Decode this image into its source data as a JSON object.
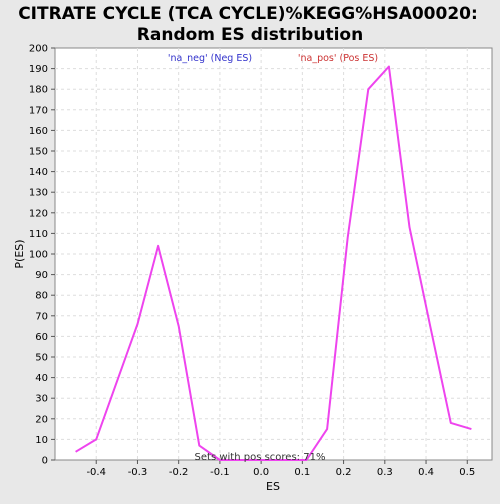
{
  "chart_data": {
    "type": "line",
    "title_line1": "CITRATE CYCLE (TCA CYCLE)%KEGG%HSA00020:",
    "title_line2": "Random ES distribution",
    "xlabel": "ES",
    "ylabel": "P(ES)",
    "xlim": [
      -0.5,
      0.56
    ],
    "ylim": [
      0,
      200
    ],
    "x_ticks": [
      "-0.4",
      "-0.3",
      "-0.2",
      "-0.1",
      "0.0",
      "0.1",
      "0.2",
      "0.3",
      "0.4",
      "0.5"
    ],
    "x_tick_values": [
      -0.4,
      -0.3,
      -0.2,
      -0.1,
      0.0,
      0.1,
      0.2,
      0.3,
      0.4,
      0.5
    ],
    "y_ticks": [
      "0",
      "10",
      "20",
      "30",
      "40",
      "50",
      "60",
      "70",
      "80",
      "90",
      "100",
      "110",
      "120",
      "130",
      "140",
      "150",
      "160",
      "170",
      "180",
      "190",
      "200"
    ],
    "y_tick_values": [
      0,
      10,
      20,
      30,
      40,
      50,
      60,
      70,
      80,
      90,
      100,
      110,
      120,
      130,
      140,
      150,
      160,
      170,
      180,
      190,
      200
    ],
    "grid": true,
    "legend": {
      "neg_label": "'na_neg' (Neg ES)",
      "pos_label": "'na_pos' (Pos ES)",
      "neg_color": "#3333cc",
      "pos_color": "#cc3333"
    },
    "annotation": "Sets with pos scores: 71%",
    "series": [
      {
        "color": "#ee44ee",
        "x": [
          -0.45,
          -0.4,
          -0.3,
          -0.25,
          -0.2,
          -0.15,
          -0.1,
          -0.05,
          0.0,
          0.05,
          0.11,
          0.16,
          0.21,
          0.26,
          0.31,
          0.36,
          0.41,
          0.46,
          0.51
        ],
        "y": [
          4,
          10,
          66,
          104,
          65,
          7,
          0,
          0,
          0,
          0,
          0,
          15,
          108,
          180,
          191,
          113,
          65,
          18,
          15
        ]
      }
    ]
  }
}
